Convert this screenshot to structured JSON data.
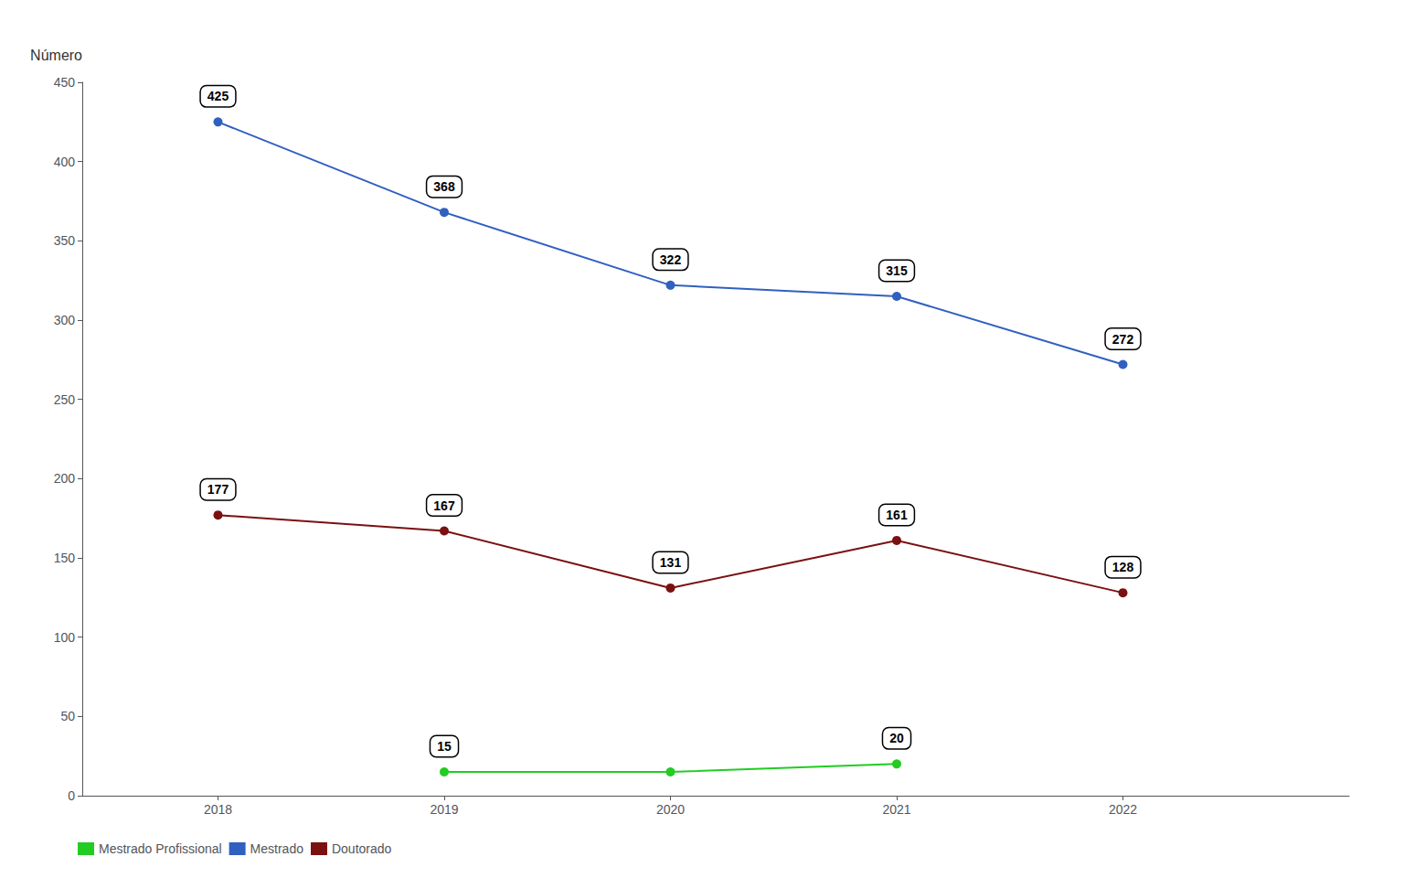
{
  "chart_data": {
    "type": "line",
    "y_label": "Número",
    "x": [
      2018,
      2019,
      2020,
      2021,
      2022
    ],
    "series": [
      {
        "name": "Mestrado Profissional",
        "color": "#22CC22",
        "x": [
          2019,
          2020,
          2021
        ],
        "values": [
          15,
          15,
          20
        ],
        "value_labels": [
          "15",
          null,
          "20"
        ],
        "marker": "circle"
      },
      {
        "name": "Mestrado",
        "color": "#3060C0",
        "x": [
          2018,
          2019,
          2020,
          2021,
          2022
        ],
        "values": [
          425,
          368,
          322,
          315,
          272
        ],
        "marker": "circle"
      },
      {
        "name": "Doutorado",
        "color": "#7B1010",
        "x": [
          2018,
          2019,
          2020,
          2021,
          2022
        ],
        "values": [
          177,
          167,
          131,
          161,
          128
        ],
        "marker": "circle"
      }
    ],
    "xlim": [
      2017.4,
      2023.0
    ],
    "xticks": [
      2018,
      2019,
      2020,
      2021,
      2022
    ],
    "ylim": [
      0,
      450
    ],
    "yticks": [
      0,
      50,
      100,
      150,
      200,
      250,
      300,
      350,
      400
    ],
    "grid": false,
    "legend": "bottom",
    "data_labels": true
  }
}
